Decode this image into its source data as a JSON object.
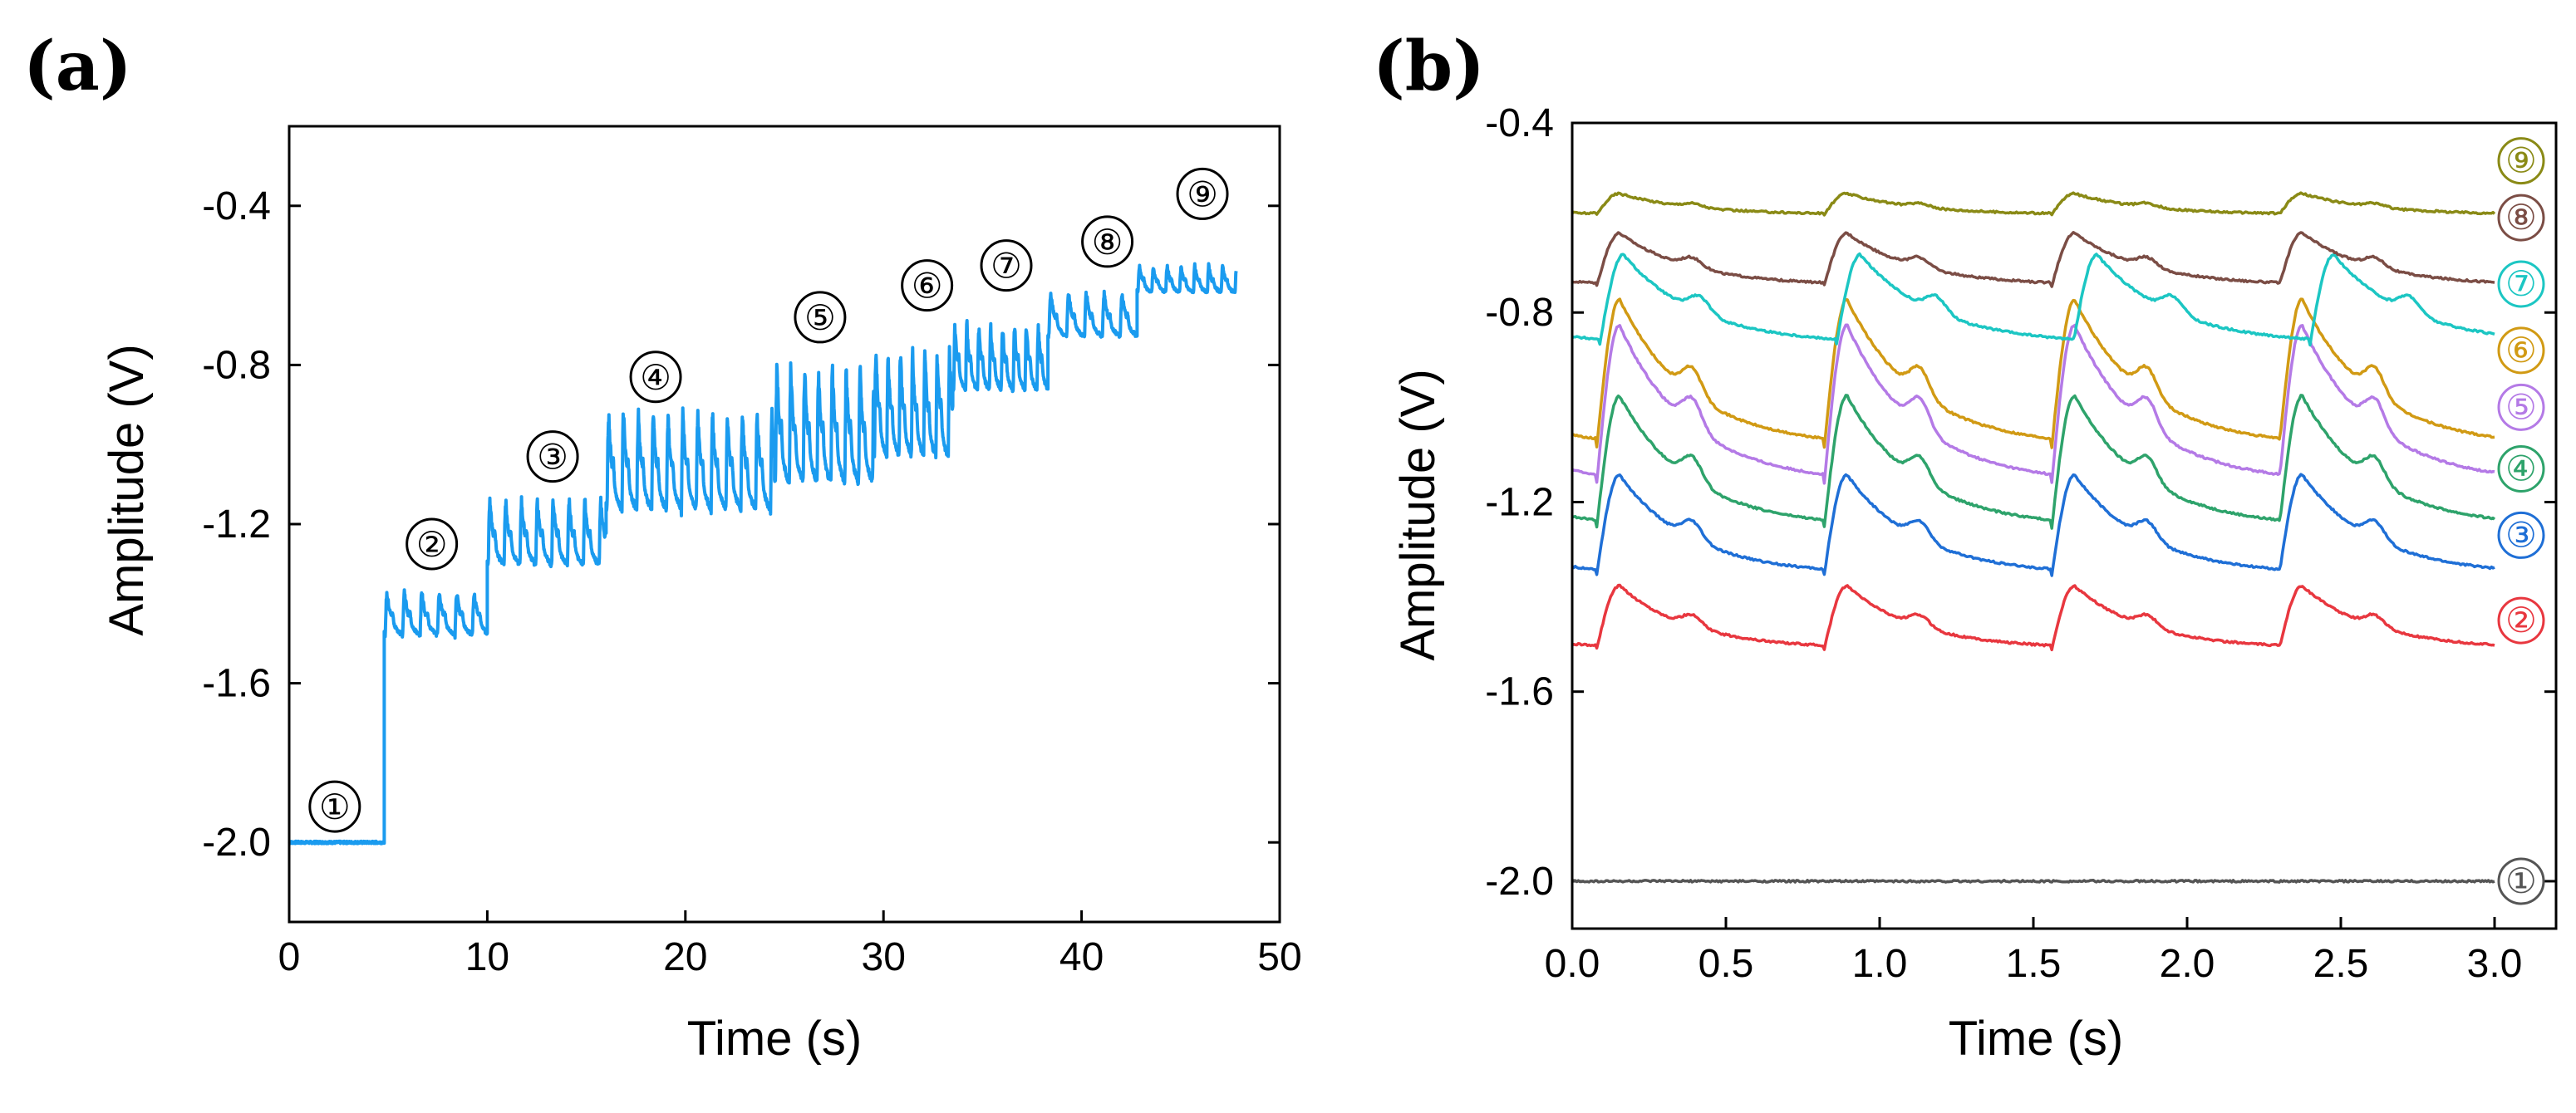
{
  "chart_data": [
    {
      "type": "line",
      "panel_label": "(a)",
      "xlabel": "Time (s)",
      "ylabel": "Amplitude (V)",
      "xlim": [
        0,
        50
      ],
      "ylim": [
        -2.2,
        -0.2
      ],
      "xticks": [
        0,
        10,
        20,
        30,
        40,
        50
      ],
      "xtick_labels": [
        "0",
        "10",
        "20",
        "30",
        "40",
        "50"
      ],
      "yticks": [
        -2.0,
        -1.6,
        -1.2,
        -0.8,
        -0.4
      ],
      "ytick_labels": [
        "-2.0",
        "-1.6",
        "-1.2",
        "-0.8",
        "-0.4"
      ],
      "line_color": "#1a9bef",
      "segments": [
        {
          "label": "①",
          "start": 0,
          "end": 4.8,
          "base": -2.0,
          "peak_amp": 0.0,
          "period": 1.0,
          "label_x": 2.3,
          "label_y": -1.91
        },
        {
          "label": "②",
          "start": 4.8,
          "end": 10,
          "base": -1.45,
          "peak_amp": 0.1,
          "period": 0.88,
          "label_x": 7.2,
          "label_y": -1.25
        },
        {
          "label": "③",
          "start": 10,
          "end": 16,
          "base": -1.26,
          "peak_amp": 0.15,
          "period": 0.8,
          "label_x": 13.3,
          "label_y": -1.03
        },
        {
          "label": "④",
          "start": 16,
          "end": 24.5,
          "base": -1.1,
          "peak_amp": 0.22,
          "period": 0.75,
          "label_x": 18.5,
          "label_y": -0.83
        },
        {
          "label": "⑤",
          "start": 24.5,
          "end": 29.5,
          "base": -1.02,
          "peak_amp": 0.26,
          "period": 0.7,
          "label_x": 26.8,
          "label_y": -0.68
        },
        {
          "label": "⑥",
          "start": 29.5,
          "end": 33.5,
          "base": -0.96,
          "peak_amp": 0.24,
          "period": 0.62,
          "label_x": 32.2,
          "label_y": -0.6
        },
        {
          "label": "⑦",
          "start": 33.5,
          "end": 38.3,
          "base": -0.82,
          "peak_amp": 0.15,
          "period": 0.6,
          "label_x": 36.2,
          "label_y": -0.55
        },
        {
          "label": "⑧",
          "start": 38.3,
          "end": 42.8,
          "base": -0.7,
          "peak_amp": 0.1,
          "period": 0.9,
          "label_x": 41.3,
          "label_y": -0.49
        },
        {
          "label": "⑨",
          "start": 42.8,
          "end": 47.8,
          "base": -0.6,
          "peak_amp": 0.06,
          "period": 0.7,
          "label_x": 46.1,
          "label_y": -0.37
        }
      ]
    },
    {
      "type": "line",
      "panel_label": "(b)",
      "xlabel": "Time (s)",
      "ylabel": "Amplitude (V)",
      "xlim": [
        0,
        3.2
      ],
      "ylim": [
        -2.1,
        -0.4
      ],
      "xticks": [
        0,
        0.5,
        1.0,
        1.5,
        2.0,
        2.5,
        3.0
      ],
      "xtick_labels": [
        "0.0",
        "0.5",
        "1.0",
        "1.5",
        "2.0",
        "2.5",
        "3.0"
      ],
      "yticks": [
        -2.0,
        -1.6,
        -1.2,
        -0.8,
        -0.4
      ],
      "ytick_labels": [
        "-2.0",
        "-1.6",
        "-1.2",
        "-0.8",
        "-0.4"
      ],
      "x_range": [
        0,
        3.0
      ],
      "series": [
        {
          "name": "①",
          "color": "#555555",
          "baseline": -2.0,
          "peak_amp": 0.0,
          "period": 0.74,
          "phase": 0.08,
          "label_y": -2.0
        },
        {
          "name": "②",
          "color": "#e8373f",
          "baseline": -1.47,
          "peak_amp": 0.12,
          "period": 0.74,
          "phase": 0.08,
          "label_y": -1.45
        },
        {
          "name": "③",
          "color": "#1f6fd6",
          "baseline": -1.29,
          "peak_amp": 0.19,
          "period": 0.74,
          "phase": 0.08,
          "label_y": -1.27
        },
        {
          "name": "④",
          "color": "#2ea36b",
          "baseline": -1.17,
          "peak_amp": 0.25,
          "period": 0.74,
          "phase": 0.08,
          "label_y": -1.13
        },
        {
          "name": "⑤",
          "color": "#b47ae6",
          "baseline": -1.06,
          "peak_amp": 0.3,
          "period": 0.74,
          "phase": 0.08,
          "label_y": -1.0
        },
        {
          "name": "⑥",
          "color": "#d19a14",
          "baseline": -0.99,
          "peak_amp": 0.28,
          "period": 0.74,
          "phase": 0.08,
          "label_y": -0.88
        },
        {
          "name": "⑦",
          "color": "#1cc6c3",
          "baseline": -0.81,
          "peak_amp": 0.17,
          "period": 0.77,
          "phase": 0.09,
          "label_y": -0.74
        },
        {
          "name": "⑧",
          "color": "#7b4d45",
          "baseline": -0.71,
          "peak_amp": 0.1,
          "period": 0.74,
          "phase": 0.08,
          "label_y": -0.6
        },
        {
          "name": "⑨",
          "color": "#8a8a16",
          "baseline": -0.58,
          "peak_amp": 0.04,
          "period": 0.74,
          "phase": 0.08,
          "label_y": -0.48
        }
      ]
    }
  ]
}
